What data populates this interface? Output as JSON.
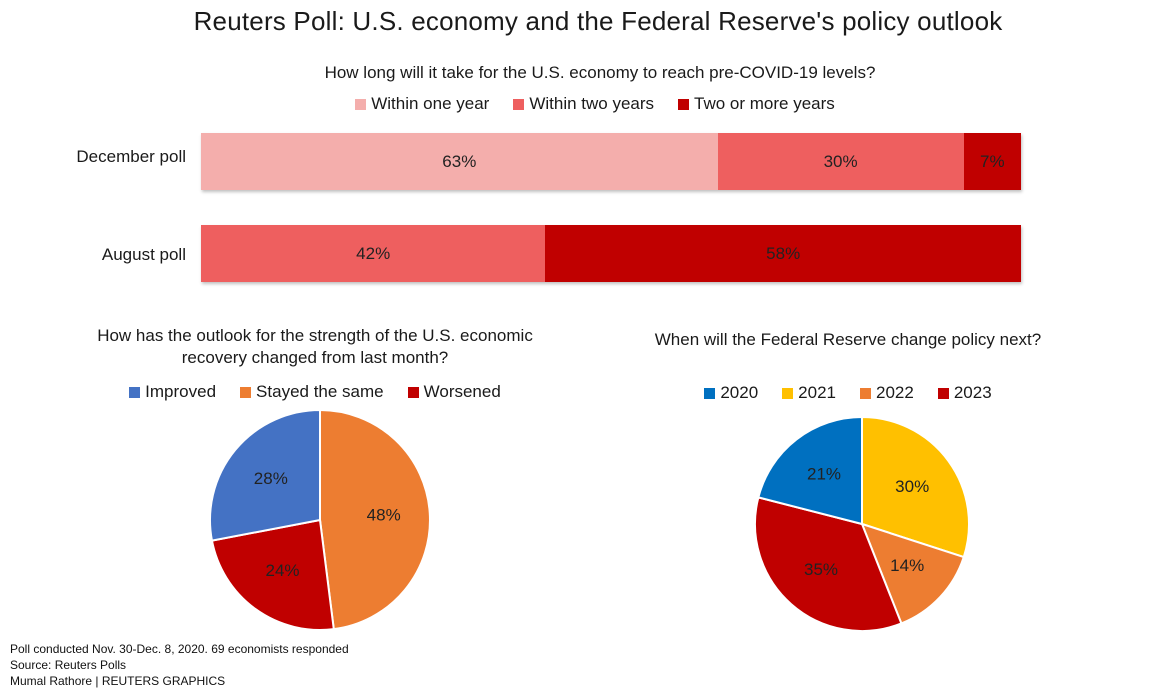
{
  "title": "Reuters Poll: U.S. economy and the Federal Reserve's policy outlook",
  "chart_data": [
    {
      "type": "bar",
      "orientation": "horizontal",
      "stacked": true,
      "title": "How long will it take for the U.S. economy to reach pre-COVID-19 levels?",
      "legend_position": "top",
      "series": [
        {
          "name": "Within one year",
          "color": "#f4aeac"
        },
        {
          "name": "Within two years",
          "color": "#ee5f5f"
        },
        {
          "name": "Two or more years",
          "color": "#c00000"
        }
      ],
      "rows": [
        {
          "label": "December poll",
          "values": [
            63,
            30,
            7
          ],
          "labels": [
            "63%",
            "30%",
            "7%"
          ]
        },
        {
          "label": "August poll",
          "values": [
            0,
            42,
            58
          ],
          "labels": [
            "",
            "42%",
            "58%"
          ]
        }
      ],
      "unit": "%"
    },
    {
      "type": "pie",
      "title": "How has the outlook for the strength of the U.S. economic recovery changed from last month?",
      "title_lines": [
        "How has the outlook for the strength of the U.S. economic",
        "recovery changed from last month?"
      ],
      "legend_position": "top",
      "slices": [
        {
          "name": "Improved",
          "value": 28,
          "label": "28%",
          "color": "#4472c4"
        },
        {
          "name": "Stayed the same",
          "value": 48,
          "label": "48%",
          "color": "#ed7d31"
        },
        {
          "name": "Worsened",
          "value": 24,
          "label": "24%",
          "color": "#c00000"
        }
      ],
      "order": [
        1,
        2,
        0
      ]
    },
    {
      "type": "pie",
      "title": "When will the Federal Reserve change policy next?",
      "legend_position": "top",
      "slices": [
        {
          "name": "2020",
          "value": 21,
          "label": "21%",
          "color": "#0070c0"
        },
        {
          "name": "2021",
          "value": 30,
          "label": "30%",
          "color": "#ffc000"
        },
        {
          "name": "2022",
          "value": 14,
          "label": "14%",
          "color": "#ed7d31"
        },
        {
          "name": "2023",
          "value": 35,
          "label": "35%",
          "color": "#c00000"
        }
      ],
      "order": [
        1,
        2,
        3,
        0
      ]
    }
  ],
  "footer": {
    "line1": "Poll conducted Nov. 30-Dec. 8, 2020. 69 economists responded",
    "line2": "Source: Reuters Polls",
    "line3": "Mumal Rathore  | REUTERS GRAPHICS"
  }
}
